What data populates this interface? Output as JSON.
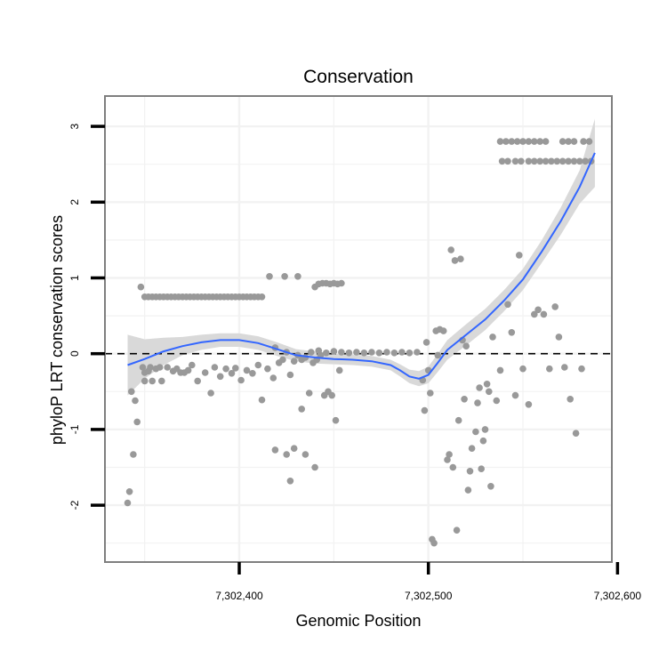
{
  "chart_data": {
    "type": "scatter",
    "title": "Conservation",
    "xlabel": "Genomic Position",
    "ylabel": "phyloP LRT conservation scores",
    "xlim": [
      7302329,
      7302597
    ],
    "ylim": [
      -2.75,
      3.4
    ],
    "x_ticks": [
      {
        "value": 7302400,
        "label": "7,302,400"
      },
      {
        "value": 7302500,
        "label": "7,302,500"
      },
      {
        "value": 7302600,
        "label": "7,302,600"
      }
    ],
    "y_ticks": [
      {
        "value": -2,
        "label": "-2"
      },
      {
        "value": -1,
        "label": "-1"
      },
      {
        "value": 0,
        "label": "0"
      },
      {
        "value": 1,
        "label": "1"
      },
      {
        "value": 2,
        "label": "2"
      },
      {
        "value": 3,
        "label": "3"
      }
    ],
    "reference_line": {
      "y": 0,
      "style": "dashed"
    },
    "grid": true,
    "colors": {
      "points": "#999999",
      "smooth": "#3366ff",
      "ribbon": "#d9d9d9",
      "panel_border": "#7f7f7f",
      "grid": "#f2f2f2"
    },
    "points": [
      {
        "x": 7302341,
        "y": -1.97
      },
      {
        "x": 7302342,
        "y": -1.82
      },
      {
        "x": 7302343,
        "y": -0.5
      },
      {
        "x": 7302344,
        "y": -1.33
      },
      {
        "x": 7302345,
        "y": -0.62
      },
      {
        "x": 7302346,
        "y": -0.9
      },
      {
        "x": 7302348,
        "y": 0.88
      },
      {
        "x": 7302349,
        "y": -0.18
      },
      {
        "x": 7302350,
        "y": -0.25
      },
      {
        "x": 7302350,
        "y": -0.36
      },
      {
        "x": 7302352,
        "y": -0.23
      },
      {
        "x": 7302353,
        "y": -0.18
      },
      {
        "x": 7302354,
        "y": -0.36
      },
      {
        "x": 7302356,
        "y": -0.2
      },
      {
        "x": 7302358,
        "y": -0.18
      },
      {
        "x": 7302359,
        "y": -0.36
      },
      {
        "x": 7302362,
        "y": -0.18
      },
      {
        "x": 7302365,
        "y": -0.23
      },
      {
        "x": 7302367,
        "y": -0.2
      },
      {
        "x": 7302369,
        "y": -0.25
      },
      {
        "x": 7302371,
        "y": -0.25
      },
      {
        "x": 7302373,
        "y": -0.22
      },
      {
        "x": 7302375,
        "y": -0.15
      },
      {
        "x": 7302378,
        "y": -0.36
      },
      {
        "x": 7302382,
        "y": -0.25
      },
      {
        "x": 7302385,
        "y": -0.52
      },
      {
        "x": 7302387,
        "y": -0.18
      },
      {
        "x": 7302390,
        "y": -0.3
      },
      {
        "x": 7302393,
        "y": -0.2
      },
      {
        "x": 7302396,
        "y": -0.26
      },
      {
        "x": 7302398,
        "y": -0.19
      },
      {
        "x": 7302401,
        "y": -0.35
      },
      {
        "x": 7302404,
        "y": -0.22
      },
      {
        "x": 7302407,
        "y": -0.26
      },
      {
        "x": 7302410,
        "y": -0.15
      },
      {
        "x": 7302412,
        "y": -0.61
      },
      {
        "x": 7302415,
        "y": -0.2
      },
      {
        "x": 7302418,
        "y": -0.32
      },
      {
        "x": 7302350,
        "y": 0.75
      },
      {
        "x": 7302352,
        "y": 0.75
      },
      {
        "x": 7302354,
        "y": 0.75
      },
      {
        "x": 7302356,
        "y": 0.75
      },
      {
        "x": 7302358,
        "y": 0.75
      },
      {
        "x": 7302360,
        "y": 0.75
      },
      {
        "x": 7302362,
        "y": 0.75
      },
      {
        "x": 7302364,
        "y": 0.75
      },
      {
        "x": 7302366,
        "y": 0.75
      },
      {
        "x": 7302368,
        "y": 0.75
      },
      {
        "x": 7302370,
        "y": 0.75
      },
      {
        "x": 7302372,
        "y": 0.75
      },
      {
        "x": 7302374,
        "y": 0.75
      },
      {
        "x": 7302376,
        "y": 0.75
      },
      {
        "x": 7302378,
        "y": 0.75
      },
      {
        "x": 7302380,
        "y": 0.75
      },
      {
        "x": 7302382,
        "y": 0.75
      },
      {
        "x": 7302384,
        "y": 0.75
      },
      {
        "x": 7302386,
        "y": 0.75
      },
      {
        "x": 7302388,
        "y": 0.75
      },
      {
        "x": 7302390,
        "y": 0.75
      },
      {
        "x": 7302392,
        "y": 0.75
      },
      {
        "x": 7302394,
        "y": 0.75
      },
      {
        "x": 7302396,
        "y": 0.75
      },
      {
        "x": 7302398,
        "y": 0.75
      },
      {
        "x": 7302400,
        "y": 0.75
      },
      {
        "x": 7302402,
        "y": 0.75
      },
      {
        "x": 7302404,
        "y": 0.75
      },
      {
        "x": 7302406,
        "y": 0.75
      },
      {
        "x": 7302408,
        "y": 0.75
      },
      {
        "x": 7302410,
        "y": 0.75
      },
      {
        "x": 7302412,
        "y": 0.75
      },
      {
        "x": 7302416,
        "y": 1.02
      },
      {
        "x": 7302424,
        "y": 1.02
      },
      {
        "x": 7302431,
        "y": 1.02
      },
      {
        "x": 7302419,
        "y": 0.08
      },
      {
        "x": 7302421,
        "y": -0.12
      },
      {
        "x": 7302423,
        "y": -0.08
      },
      {
        "x": 7302425,
        "y": 0.02
      },
      {
        "x": 7302427,
        "y": -0.28
      },
      {
        "x": 7302429,
        "y": -0.1
      },
      {
        "x": 7302431,
        "y": -0.02
      },
      {
        "x": 7302433,
        "y": -0.08
      },
      {
        "x": 7302435,
        "y": -0.05
      },
      {
        "x": 7302437,
        "y": -0.52
      },
      {
        "x": 7302439,
        "y": -0.12
      },
      {
        "x": 7302441,
        "y": -0.08
      },
      {
        "x": 7302443,
        "y": -0.02
      },
      {
        "x": 7302445,
        "y": -0.55
      },
      {
        "x": 7302447,
        "y": -0.5
      },
      {
        "x": 7302449,
        "y": -0.55
      },
      {
        "x": 7302451,
        "y": -0.88
      },
      {
        "x": 7302453,
        "y": -0.22
      },
      {
        "x": 7302419,
        "y": -1.27
      },
      {
        "x": 7302425,
        "y": -1.33
      },
      {
        "x": 7302427,
        "y": -1.68
      },
      {
        "x": 7302429,
        "y": -1.25
      },
      {
        "x": 7302433,
        "y": -0.73
      },
      {
        "x": 7302435,
        "y": -1.33
      },
      {
        "x": 7302440,
        "y": -1.5
      },
      {
        "x": 7302440,
        "y": 0.88
      },
      {
        "x": 7302442,
        "y": 0.92
      },
      {
        "x": 7302444,
        "y": 0.93
      },
      {
        "x": 7302446,
        "y": 0.93
      },
      {
        "x": 7302448,
        "y": 0.92
      },
      {
        "x": 7302450,
        "y": 0.93
      },
      {
        "x": 7302452,
        "y": 0.92
      },
      {
        "x": 7302454,
        "y": 0.93
      },
      {
        "x": 7302438,
        "y": 0.02
      },
      {
        "x": 7302442,
        "y": 0.04
      },
      {
        "x": 7302446,
        "y": 0.01
      },
      {
        "x": 7302450,
        "y": 0.03
      },
      {
        "x": 7302454,
        "y": 0.02
      },
      {
        "x": 7302458,
        "y": 0.01
      },
      {
        "x": 7302462,
        "y": 0.02
      },
      {
        "x": 7302466,
        "y": 0.01
      },
      {
        "x": 7302470,
        "y": 0.02
      },
      {
        "x": 7302474,
        "y": 0.01
      },
      {
        "x": 7302478,
        "y": 0.02
      },
      {
        "x": 7302482,
        "y": 0.01
      },
      {
        "x": 7302486,
        "y": 0.02
      },
      {
        "x": 7302490,
        "y": 0.01
      },
      {
        "x": 7302494,
        "y": 0.02
      },
      {
        "x": 7302497,
        "y": -0.35
      },
      {
        "x": 7302498,
        "y": -0.75
      },
      {
        "x": 7302499,
        "y": 0.15
      },
      {
        "x": 7302500,
        "y": -0.22
      },
      {
        "x": 7302501,
        "y": -0.52
      },
      {
        "x": 7302502,
        "y": -2.45
      },
      {
        "x": 7302503,
        "y": -2.5
      },
      {
        "x": 7302504,
        "y": 0.3
      },
      {
        "x": 7302505,
        "y": -0.02
      },
      {
        "x": 7302506,
        "y": 0.32
      },
      {
        "x": 7302508,
        "y": 0.3
      },
      {
        "x": 7302510,
        "y": -1.4
      },
      {
        "x": 7302511,
        "y": -1.33
      },
      {
        "x": 7302512,
        "y": 1.37
      },
      {
        "x": 7302513,
        "y": -1.5
      },
      {
        "x": 7302514,
        "y": 1.23
      },
      {
        "x": 7302515,
        "y": -2.33
      },
      {
        "x": 7302516,
        "y": -0.88
      },
      {
        "x": 7302517,
        "y": 1.25
      },
      {
        "x": 7302518,
        "y": 0.18
      },
      {
        "x": 7302519,
        "y": -0.6
      },
      {
        "x": 7302520,
        "y": 0.1
      },
      {
        "x": 7302521,
        "y": -1.8
      },
      {
        "x": 7302522,
        "y": -1.55
      },
      {
        "x": 7302523,
        "y": -1.25
      },
      {
        "x": 7302525,
        "y": -1.03
      },
      {
        "x": 7302526,
        "y": -0.65
      },
      {
        "x": 7302527,
        "y": -0.45
      },
      {
        "x": 7302528,
        "y": -1.52
      },
      {
        "x": 7302529,
        "y": -1.15
      },
      {
        "x": 7302530,
        "y": -1.0
      },
      {
        "x": 7302531,
        "y": -0.4
      },
      {
        "x": 7302532,
        "y": -0.5
      },
      {
        "x": 7302533,
        "y": -1.75
      },
      {
        "x": 7302534,
        "y": 0.22
      },
      {
        "x": 7302536,
        "y": -0.62
      },
      {
        "x": 7302538,
        "y": -0.22
      },
      {
        "x": 7302542,
        "y": 0.65
      },
      {
        "x": 7302544,
        "y": 0.28
      },
      {
        "x": 7302546,
        "y": -0.55
      },
      {
        "x": 7302548,
        "y": 1.3
      },
      {
        "x": 7302550,
        "y": -0.2
      },
      {
        "x": 7302553,
        "y": -0.67
      },
      {
        "x": 7302556,
        "y": 0.52
      },
      {
        "x": 7302558,
        "y": 0.58
      },
      {
        "x": 7302561,
        "y": 0.52
      },
      {
        "x": 7302564,
        "y": -0.2
      },
      {
        "x": 7302567,
        "y": 0.62
      },
      {
        "x": 7302569,
        "y": 0.22
      },
      {
        "x": 7302572,
        "y": -0.18
      },
      {
        "x": 7302575,
        "y": -0.6
      },
      {
        "x": 7302578,
        "y": -1.05
      },
      {
        "x": 7302581,
        "y": -0.2
      },
      {
        "x": 7302538,
        "y": 2.8
      },
      {
        "x": 7302541,
        "y": 2.8
      },
      {
        "x": 7302544,
        "y": 2.8
      },
      {
        "x": 7302547,
        "y": 2.8
      },
      {
        "x": 7302550,
        "y": 2.8
      },
      {
        "x": 7302553,
        "y": 2.8
      },
      {
        "x": 7302556,
        "y": 2.8
      },
      {
        "x": 7302559,
        "y": 2.8
      },
      {
        "x": 7302562,
        "y": 2.8
      },
      {
        "x": 7302539,
        "y": 2.54
      },
      {
        "x": 7302542,
        "y": 2.54
      },
      {
        "x": 7302546,
        "y": 2.54
      },
      {
        "x": 7302549,
        "y": 2.54
      },
      {
        "x": 7302553,
        "y": 2.54
      },
      {
        "x": 7302556,
        "y": 2.54
      },
      {
        "x": 7302559,
        "y": 2.54
      },
      {
        "x": 7302562,
        "y": 2.54
      },
      {
        "x": 7302565,
        "y": 2.54
      },
      {
        "x": 7302568,
        "y": 2.54
      },
      {
        "x": 7302571,
        "y": 2.54
      },
      {
        "x": 7302574,
        "y": 2.54
      },
      {
        "x": 7302577,
        "y": 2.54
      },
      {
        "x": 7302580,
        "y": 2.54
      },
      {
        "x": 7302583,
        "y": 2.54
      },
      {
        "x": 7302586,
        "y": 2.54
      },
      {
        "x": 7302571,
        "y": 2.8
      },
      {
        "x": 7302574,
        "y": 2.8
      },
      {
        "x": 7302577,
        "y": 2.8
      },
      {
        "x": 7302582,
        "y": 2.8
      },
      {
        "x": 7302585,
        "y": 2.8
      }
    ],
    "smooth": {
      "x": [
        7302341,
        7302350,
        7302360,
        7302370,
        7302380,
        7302390,
        7302400,
        7302410,
        7302420,
        7302430,
        7302440,
        7302450,
        7302460,
        7302470,
        7302480,
        7302485,
        7302490,
        7302495,
        7302500,
        7302505,
        7302510,
        7302520,
        7302530,
        7302540,
        7302550,
        7302560,
        7302570,
        7302580,
        7302588
      ],
      "y": [
        -0.15,
        -0.07,
        0.03,
        0.1,
        0.15,
        0.18,
        0.18,
        0.14,
        0.06,
        -0.02,
        -0.05,
        -0.07,
        -0.08,
        -0.1,
        -0.15,
        -0.22,
        -0.3,
        -0.33,
        -0.28,
        -0.12,
        0.05,
        0.25,
        0.45,
        0.7,
        0.98,
        1.35,
        1.75,
        2.2,
        2.65
      ],
      "lower": [
        -0.55,
        -0.33,
        -0.15,
        -0.02,
        0.05,
        0.09,
        0.09,
        0.05,
        -0.03,
        -0.1,
        -0.13,
        -0.14,
        -0.15,
        -0.17,
        -0.22,
        -0.3,
        -0.39,
        -0.43,
        -0.39,
        -0.24,
        -0.08,
        0.11,
        0.31,
        0.56,
        0.84,
        1.2,
        1.57,
        1.98,
        2.2
      ],
      "upper": [
        0.25,
        0.19,
        0.21,
        0.22,
        0.25,
        0.27,
        0.27,
        0.23,
        0.15,
        0.06,
        0.03,
        0.0,
        -0.01,
        -0.03,
        -0.08,
        -0.14,
        -0.21,
        -0.23,
        -0.17,
        0.0,
        0.18,
        0.39,
        0.59,
        0.84,
        1.12,
        1.5,
        1.93,
        2.42,
        3.1
      ]
    }
  }
}
